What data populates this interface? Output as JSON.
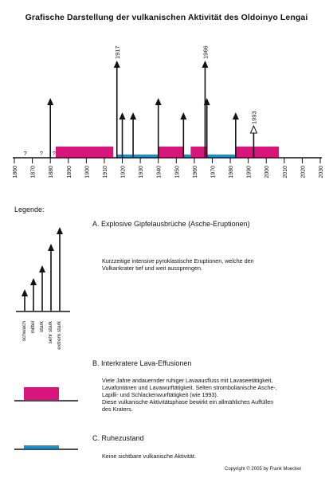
{
  "title": "Grafische Darstellung der vulkanischen Aktivität des Oldoinyo Lengai",
  "chart_data": {
    "type": "timeline",
    "x_ticks": [
      "1860",
      "1870",
      "1880",
      "1890",
      "1900",
      "1910",
      "1920",
      "1930",
      "1940",
      "1950",
      "1960",
      "1970",
      "1980",
      "1990",
      "2000",
      "2010",
      "2020",
      "2030"
    ],
    "xlim": [
      1860,
      2030
    ],
    "unknown_marks": [
      {
        "year": 1866,
        "label": "?"
      },
      {
        "year": 1875,
        "label": "?"
      },
      {
        "year": 1882,
        "label": "?"
      }
    ],
    "lava_effusion_periods": [
      [
        1883,
        1915
      ],
      [
        1940,
        1954
      ],
      [
        1958,
        1967
      ],
      [
        1983,
        2007
      ]
    ],
    "quiescent_periods": [
      [
        1917,
        1940
      ],
      [
        1954,
        1958
      ],
      [
        1967,
        1983
      ]
    ],
    "eruptions": [
      {
        "year": 1880,
        "strength": "sehr stark"
      },
      {
        "year": 1917,
        "strength": "extrem stark",
        "label": "1917"
      },
      {
        "year": 1920,
        "strength": "stark"
      },
      {
        "year": 1926,
        "strength": "stark"
      },
      {
        "year": 1940,
        "strength": "sehr stark"
      },
      {
        "year": 1954,
        "strength": "stark"
      },
      {
        "year": 1966,
        "strength": "extrem stark",
        "label": "1966"
      },
      {
        "year": 1967,
        "strength": "sehr stark"
      },
      {
        "year": 1983,
        "strength": "stark"
      },
      {
        "year": 1993,
        "strength": "mittel",
        "label": "1993",
        "hollow": true
      }
    ],
    "colors": {
      "lava": "#d8157a",
      "quiet": "#1d8fc4",
      "axis": "#111111"
    }
  },
  "legend": {
    "heading": "Legende:",
    "a": {
      "title": "A.  Explosive Gipfelausbrüche (Asche-Eruptionen)",
      "text": [
        "Kurzzeitige intensive pyroklastische Eruptionen, welche den",
        "Vulkankrater tief und weit aussprengen."
      ],
      "strength_labels": [
        "schwach",
        "mittel",
        "stark",
        "sehr stark",
        "extrem stark"
      ]
    },
    "b": {
      "title": "B.  Interkratere Lava-Effusionen",
      "text": [
        "Viele Jahre andauernder ruhiger Lavaausfluss mit Lavaseetätigkeit,",
        "Lavafontänen und Lavawurftätigkeit. Selten strombolianische Asche-,",
        "Lapilli- und Schlackenwurftätigkeit (wie 1993).",
        "Diese vulkanische Aktivitätsphase bewirkt ein allmähliches Auffüllen",
        "des Kraters."
      ]
    },
    "c": {
      "title": "C.  Ruhezustand",
      "text": [
        "Keine sichtbare vulkanische Aktivität."
      ]
    }
  },
  "copyright": "Copyright © 2005 by Frank Moeckel"
}
